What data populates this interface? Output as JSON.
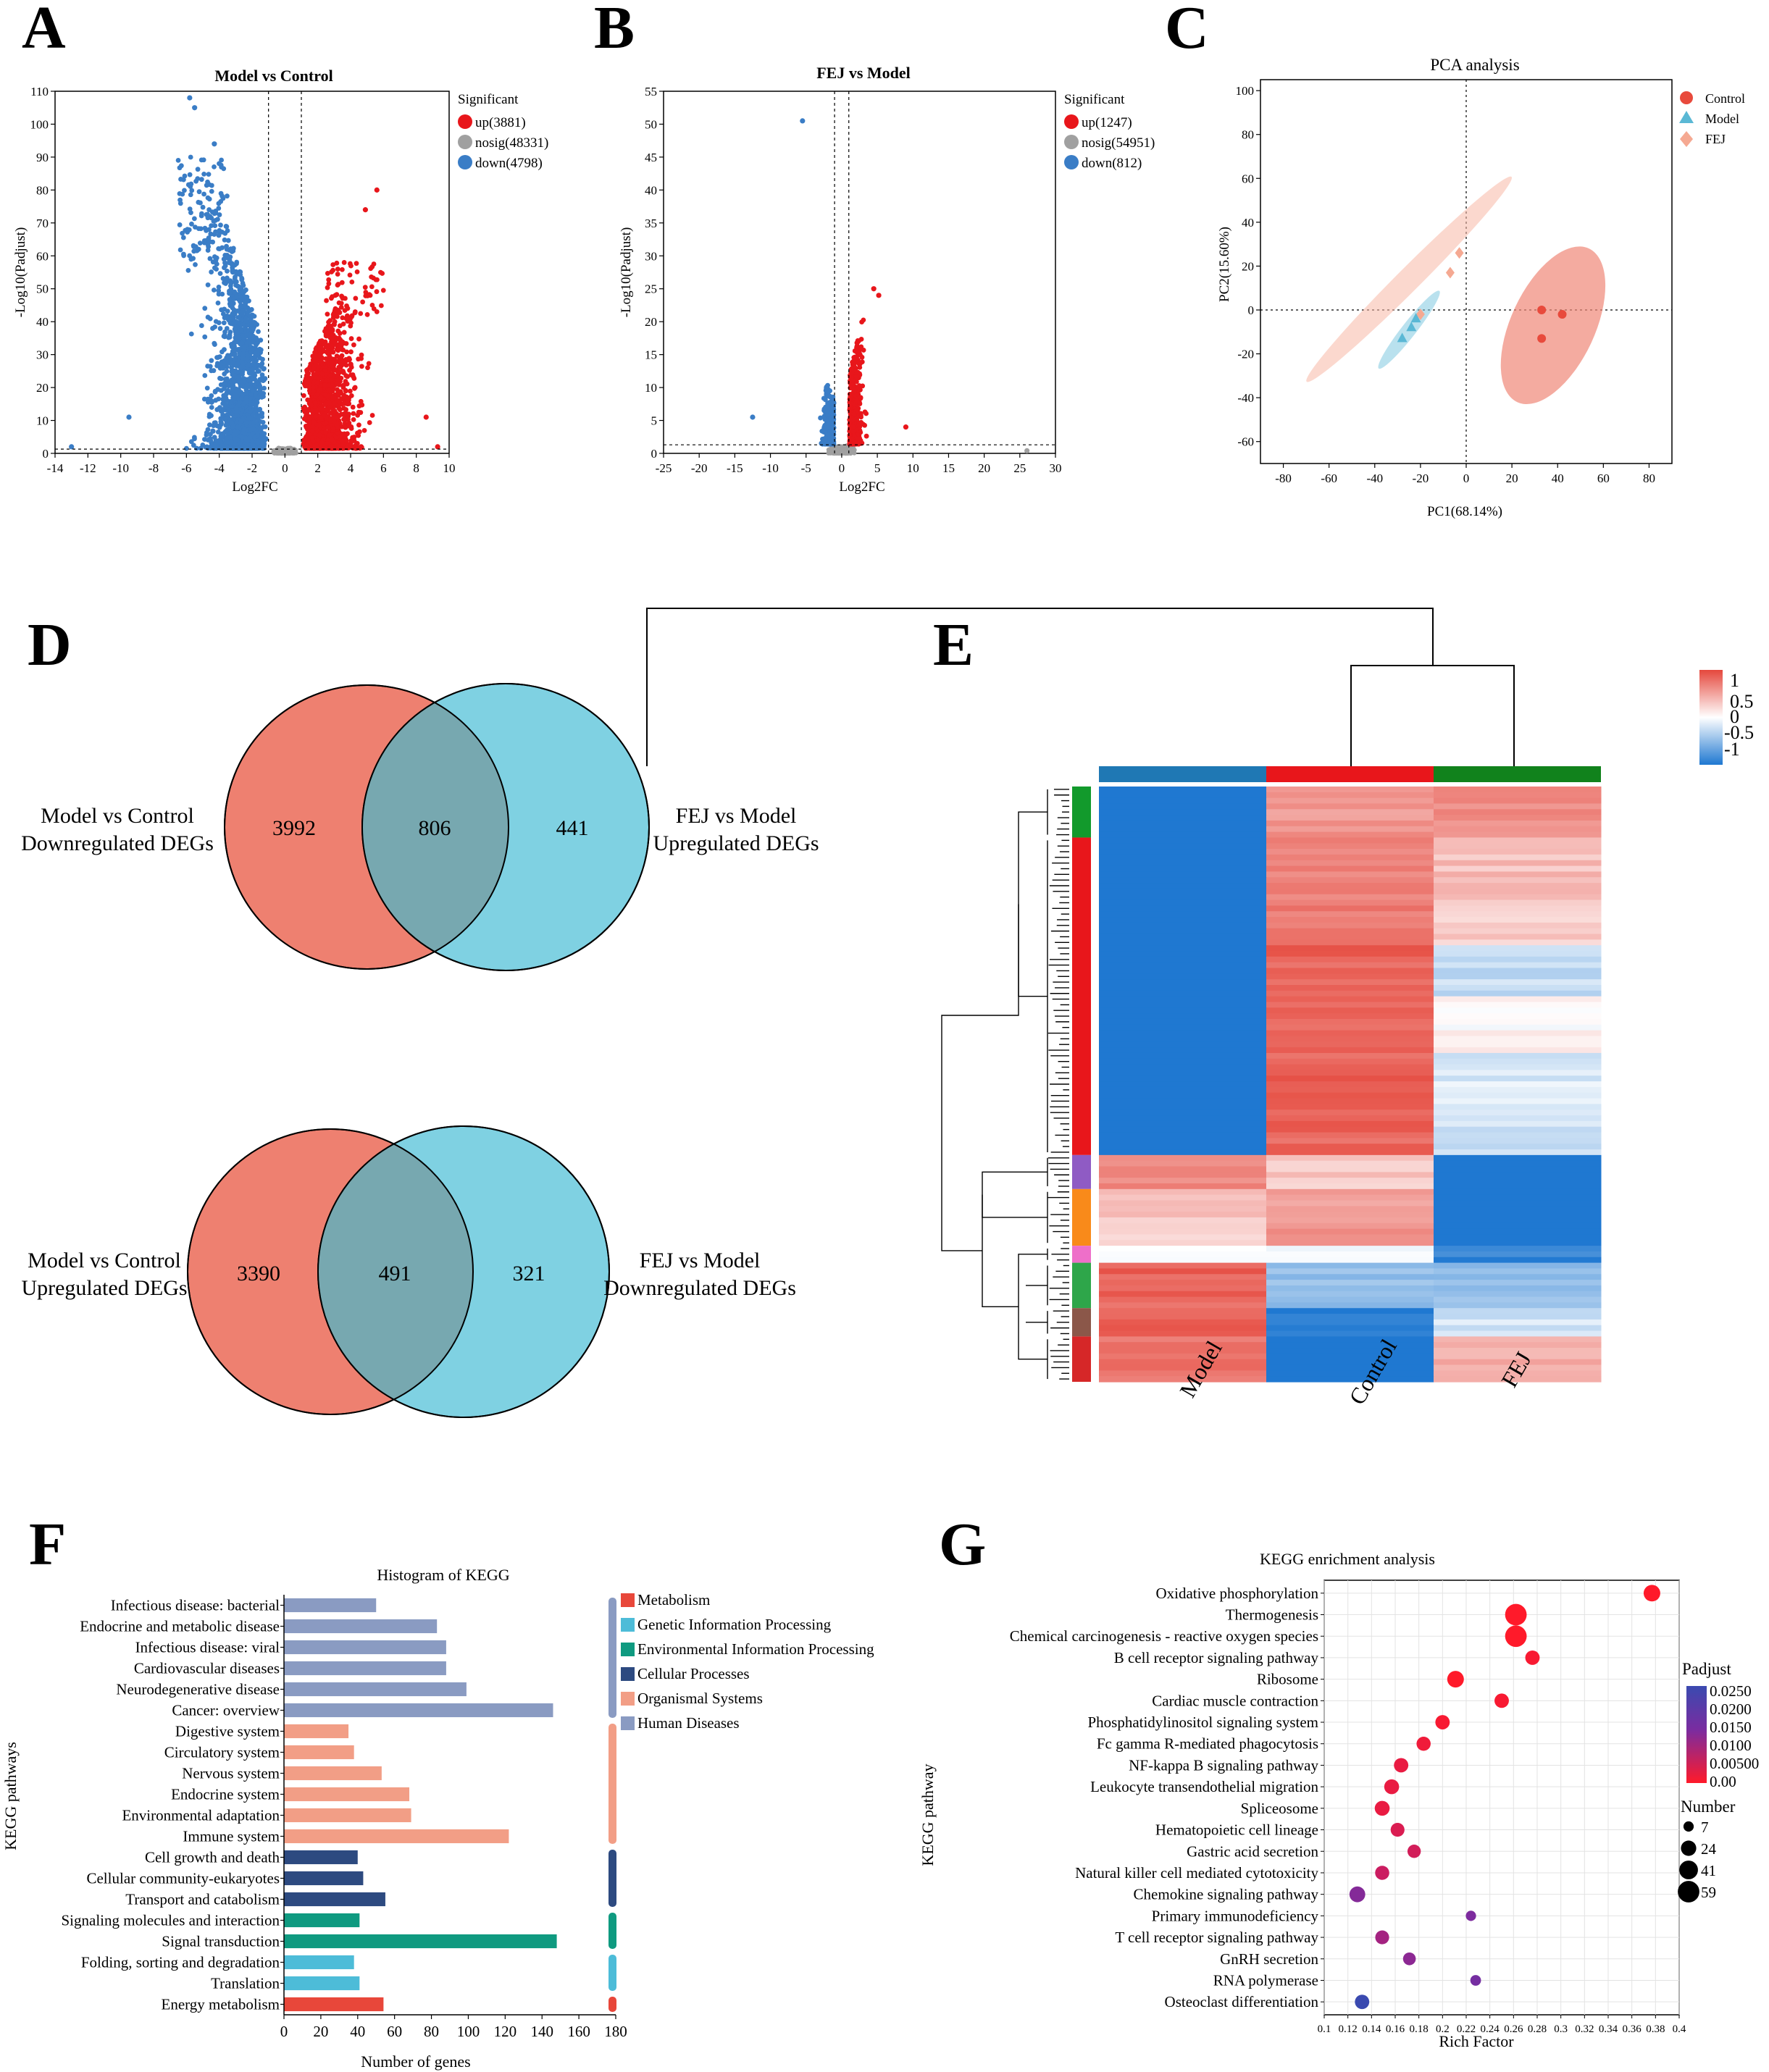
{
  "panels": {
    "A": {
      "letter": "A"
    },
    "B": {
      "letter": "B"
    },
    "C": {
      "letter": "C"
    },
    "D": {
      "letter": "D"
    },
    "E": {
      "letter": "E"
    },
    "F": {
      "letter": "F"
    },
    "G": {
      "letter": "G"
    }
  },
  "colors": {
    "up": "#e8161b",
    "down": "#3a7dc6",
    "nosig": "#a0a0a0",
    "venn_left": "#ee8070",
    "venn_right": "#7fd1e2",
    "venn_overlap": "#77a8b0",
    "heat_high": "#e5483d",
    "heat_mid": "#ffffff",
    "heat_low": "#1f78d1",
    "control": "#e84a3c",
    "model": "#5ab8d5",
    "fej": "#f5a992",
    "metabolism": "#e8473a",
    "genetic": "#4dbcd8",
    "environmental": "#0f9a80",
    "cellular": "#2d4a80",
    "organismal": "#f29e86",
    "human": "#8a9bc2"
  },
  "chart_data": [
    {
      "id": "A",
      "type": "scatter",
      "title": "Model vs Control",
      "xlabel": "Log2FC",
      "ylabel": "-Log10(Padjust)",
      "xlim": [
        -14,
        10
      ],
      "ylim": [
        0,
        110
      ],
      "xticks": [
        "-14",
        "-12",
        "-10",
        "-8",
        "-6",
        "-4",
        "-2",
        "0",
        "2",
        "4",
        "6",
        "8",
        "10"
      ],
      "yticks": [
        "0",
        "10",
        "20",
        "30",
        "40",
        "50",
        "60",
        "70",
        "80",
        "90",
        "100",
        "110"
      ],
      "fc_threshold": [
        -1,
        1
      ],
      "padj_line": 1.3,
      "legend_title": "Significant",
      "legend": [
        {
          "key": "up",
          "label": "up(3881)"
        },
        {
          "key": "nosig",
          "label": "nosig(48331)"
        },
        {
          "key": "down",
          "label": "down(4798)"
        }
      ],
      "down_max_y": 108,
      "up_max_y": 80,
      "down_peak_x": -5.5,
      "up_peak_x": 3.5,
      "outliers": [
        {
          "x": -13,
          "y": 2,
          "g": "down"
        },
        {
          "x": -9.5,
          "y": 11,
          "g": "down"
        },
        {
          "x": -5.8,
          "y": 108,
          "g": "down"
        },
        {
          "x": -5.5,
          "y": 105,
          "g": "down"
        },
        {
          "x": -4.3,
          "y": 94,
          "g": "down"
        },
        {
          "x": 5.6,
          "y": 80,
          "g": "up"
        },
        {
          "x": 4.9,
          "y": 74,
          "g": "up"
        },
        {
          "x": 9.3,
          "y": 2,
          "g": "up"
        },
        {
          "x": 8.6,
          "y": 11,
          "g": "up"
        }
      ]
    },
    {
      "id": "B",
      "type": "scatter",
      "title": "FEJ vs Model",
      "xlabel": "Log2FC",
      "ylabel": "-Log10(Padjust)",
      "xlim": [
        -25,
        30
      ],
      "ylim": [
        0,
        55
      ],
      "xticks": [
        "-25",
        "-20",
        "-15",
        "-10",
        "-5",
        "0",
        "5",
        "10",
        "15",
        "20",
        "25",
        "30"
      ],
      "yticks": [
        "0",
        "5",
        "10",
        "15",
        "20",
        "25",
        "30",
        "35",
        "40",
        "45",
        "50",
        "55"
      ],
      "fc_threshold": [
        -1,
        1
      ],
      "padj_line": 1.3,
      "legend_title": "Significant",
      "legend": [
        {
          "key": "up",
          "label": "up(1247)"
        },
        {
          "key": "nosig",
          "label": "nosig(54951)"
        },
        {
          "key": "down",
          "label": "down(812)"
        }
      ],
      "outliers": [
        {
          "x": -5.5,
          "y": 50.5,
          "g": "down"
        },
        {
          "x": -12.5,
          "y": 5.5,
          "g": "down"
        },
        {
          "x": 4.5,
          "y": 25,
          "g": "up"
        },
        {
          "x": 5.2,
          "y": 24,
          "g": "up"
        },
        {
          "x": 9,
          "y": 4,
          "g": "up"
        },
        {
          "x": 26,
          "y": 0.4,
          "g": "nosig"
        }
      ]
    },
    {
      "id": "C",
      "type": "scatter",
      "title": "PCA analysis",
      "xlabel": "PC1(68.14%)",
      "ylabel": "PC2(15.60%)",
      "xlim": [
        -80,
        80
      ],
      "ylim": [
        -60,
        100
      ],
      "xticks": [
        "-80",
        "-60",
        "-40",
        "-20",
        "0",
        "20",
        "40",
        "60",
        "80"
      ],
      "yticks": [
        "-60",
        "-40",
        "-20",
        "0",
        "20",
        "40",
        "60",
        "80",
        "100"
      ],
      "legend": [
        {
          "key": "control",
          "label": "Control"
        },
        {
          "key": "model",
          "label": "Model"
        },
        {
          "key": "fej",
          "label": "FEJ"
        }
      ],
      "points": {
        "control": [
          [
            33,
            0
          ],
          [
            42,
            -2
          ],
          [
            33,
            -13
          ]
        ],
        "model": [
          [
            -28,
            -13
          ],
          [
            -24,
            -8
          ],
          [
            -22,
            -4
          ]
        ],
        "fej": [
          [
            -20,
            -2
          ],
          [
            -7,
            17
          ],
          [
            -3,
            26
          ]
        ]
      }
    },
    {
      "id": "D",
      "type": "venn",
      "sets": [
        {
          "left": "Model vs Control\nDownregulated DEGs",
          "right": "FEJ vs Model\nUpregulated DEGs",
          "only_left": 3992,
          "both": 806,
          "only_right": 441
        },
        {
          "left": "Model vs Control\nUpregulated DEGs",
          "right": "FEJ vs Model\nDownregulated DEGs",
          "only_left": 3390,
          "both": 491,
          "only_right": 321
        }
      ]
    },
    {
      "id": "E",
      "type": "heatmap",
      "columns": [
        "Model",
        "Control",
        "FEJ"
      ],
      "scale_ticks": [
        "1",
        "0.5",
        "0",
        "-0.5",
        "-1"
      ],
      "clusters": [
        {
          "color": "#129a2c",
          "rows": 9,
          "values": [
            [
              -1,
              0.55,
              0.6
            ]
          ]
        },
        {
          "color": "#e8161b",
          "rows": 56,
          "values": [
            [
              -1,
              0.7,
              0.35
            ],
            [
              -1,
              0.72,
              0.3
            ],
            [
              -1,
              0.85,
              -0.25
            ],
            [
              -1,
              0.85,
              0.05
            ],
            [
              -1,
              0.85,
              -0.15
            ],
            [
              -1,
              0.85,
              -0.2
            ]
          ]
        },
        {
          "color": "#8f5bc4",
          "rows": 6,
          "values": [
            [
              0.6,
              0.3,
              -1
            ]
          ]
        },
        {
          "color": "#f98a1a",
          "rows": 10,
          "values": [
            [
              0.3,
              0.55,
              -1
            ]
          ]
        },
        {
          "color": "#ee6fc9",
          "rows": 3,
          "values": [
            [
              0.05,
              -0.05,
              -0.9
            ]
          ]
        },
        {
          "color": "#2ea64a",
          "rows": 8,
          "values": [
            [
              0.85,
              -0.5,
              -0.5
            ]
          ]
        },
        {
          "color": "#8b5749",
          "rows": 5,
          "values": [
            [
              0.85,
              -0.95,
              -0.2
            ]
          ]
        },
        {
          "color": "#d62728",
          "rows": 8,
          "values": [
            [
              0.75,
              -1,
              0.45
            ]
          ]
        }
      ]
    },
    {
      "id": "F",
      "type": "bar",
      "title": "Histogram of KEGG",
      "xlabel": "Number of genes",
      "ylabel": "KEGG pathways",
      "xlim": [
        0,
        180
      ],
      "xticks": [
        "0",
        "20",
        "40",
        "60",
        "80",
        "100",
        "120",
        "140",
        "160",
        "180"
      ],
      "categories": [
        {
          "label": "Infectious disease: bacterial",
          "value": 50,
          "group": "human"
        },
        {
          "label": "Endocrine and metabolic disease",
          "value": 83,
          "group": "human"
        },
        {
          "label": "Infectious disease: viral",
          "value": 88,
          "group": "human"
        },
        {
          "label": "Cardiovascular diseases",
          "value": 88,
          "group": "human"
        },
        {
          "label": "Neurodegenerative disease",
          "value": 99,
          "group": "human"
        },
        {
          "label": "Cancer: overview",
          "value": 146,
          "group": "human"
        },
        {
          "label": "Digestive system",
          "value": 35,
          "group": "organismal"
        },
        {
          "label": "Circulatory system",
          "value": 38,
          "group": "organismal"
        },
        {
          "label": "Nervous system",
          "value": 53,
          "group": "organismal"
        },
        {
          "label": "Endocrine system",
          "value": 68,
          "group": "organismal"
        },
        {
          "label": "Environmental adaptation",
          "value": 69,
          "group": "organismal"
        },
        {
          "label": "Immune system",
          "value": 122,
          "group": "organismal"
        },
        {
          "label": "Cell growth and death",
          "value": 40,
          "group": "cellular"
        },
        {
          "label": "Cellular community-eukaryotes",
          "value": 43,
          "group": "cellular"
        },
        {
          "label": "Transport and catabolism",
          "value": 55,
          "group": "cellular"
        },
        {
          "label": "Signaling molecules and interaction",
          "value": 41,
          "group": "environmental"
        },
        {
          "label": "Signal transduction",
          "value": 148,
          "group": "environmental"
        },
        {
          "label": "Folding, sorting and degradation",
          "value": 38,
          "group": "genetic"
        },
        {
          "label": "Translation",
          "value": 41,
          "group": "genetic"
        },
        {
          "label": "Energy metabolism",
          "value": 54,
          "group": "metabolism"
        }
      ],
      "legend": [
        {
          "key": "metabolism",
          "label": "Metabolism"
        },
        {
          "key": "genetic",
          "label": "Genetic Information Processing"
        },
        {
          "key": "environmental",
          "label": "Environmental Information Processing"
        },
        {
          "key": "cellular",
          "label": "Cellular Processes"
        },
        {
          "key": "organismal",
          "label": "Organismal Systems"
        },
        {
          "key": "human",
          "label": "Human Diseases"
        }
      ]
    },
    {
      "id": "G",
      "type": "scatter",
      "title": "KEGG enrichment analysis",
      "xlabel": "Rich Factor",
      "ylabel": "KEGG pathway",
      "xlim": [
        0.1,
        0.4
      ],
      "xticks": [
        "0.1",
        "0.12",
        "0.14",
        "0.16",
        "0.18",
        "0.2",
        "0.22",
        "0.24",
        "0.26",
        "0.28",
        "0.3",
        "0.32",
        "0.34",
        "0.36",
        "0.38",
        "0.4"
      ],
      "points": [
        {
          "label": "Oxidative phosphorylation",
          "x": 0.377,
          "n": 30,
          "p": 0.0
        },
        {
          "label": "Thermogenesis",
          "x": 0.262,
          "n": 59,
          "p": 0.0
        },
        {
          "label": "Chemical carcinogenesis - reactive oxygen species",
          "x": 0.262,
          "n": 59,
          "p": 0.0
        },
        {
          "label": "B cell receptor signaling pathway",
          "x": 0.276,
          "n": 20,
          "p": 0.001
        },
        {
          "label": "Ribosome",
          "x": 0.211,
          "n": 30,
          "p": 0.0
        },
        {
          "label": "Cardiac muscle contraction",
          "x": 0.25,
          "n": 20,
          "p": 0.001
        },
        {
          "label": "Phosphatidylinositol signaling system",
          "x": 0.2,
          "n": 20,
          "p": 0.001
        },
        {
          "label": "Fc gamma R-mediated phagocytosis",
          "x": 0.184,
          "n": 19,
          "p": 0.002
        },
        {
          "label": "NF-kappa B signaling pathway",
          "x": 0.165,
          "n": 20,
          "p": 0.003
        },
        {
          "label": "Leukocyte transendothelial migration",
          "x": 0.157,
          "n": 22,
          "p": 0.003
        },
        {
          "label": "Spliceosome",
          "x": 0.149,
          "n": 22,
          "p": 0.003
        },
        {
          "label": "Hematopoietic cell lineage",
          "x": 0.162,
          "n": 18,
          "p": 0.005
        },
        {
          "label": "Gastric acid secretion",
          "x": 0.176,
          "n": 16,
          "p": 0.006
        },
        {
          "label": "Natural killer cell mediated cytotoxicity",
          "x": 0.149,
          "n": 19,
          "p": 0.007
        },
        {
          "label": "Chemokine signaling pathway",
          "x": 0.128,
          "n": 26,
          "p": 0.016
        },
        {
          "label": "Primary immunodeficiency",
          "x": 0.224,
          "n": 7,
          "p": 0.017
        },
        {
          "label": "T cell receptor signaling pathway",
          "x": 0.149,
          "n": 18,
          "p": 0.012
        },
        {
          "label": "GnRH secretion",
          "x": 0.172,
          "n": 14,
          "p": 0.015
        },
        {
          "label": "RNA polymerase",
          "x": 0.228,
          "n": 8,
          "p": 0.018
        },
        {
          "label": "Osteoclast differentiation",
          "x": 0.132,
          "n": 20,
          "p": 0.026
        }
      ],
      "color_legend_title": "Padjust",
      "color_ticks": [
        "0.0250",
        "0.0200",
        "0.0150",
        "0.0100",
        "0.00500",
        "0.00"
      ],
      "size_legend_title": "Number",
      "size_ticks": [
        "7",
        "24",
        "41",
        "59"
      ]
    }
  ]
}
